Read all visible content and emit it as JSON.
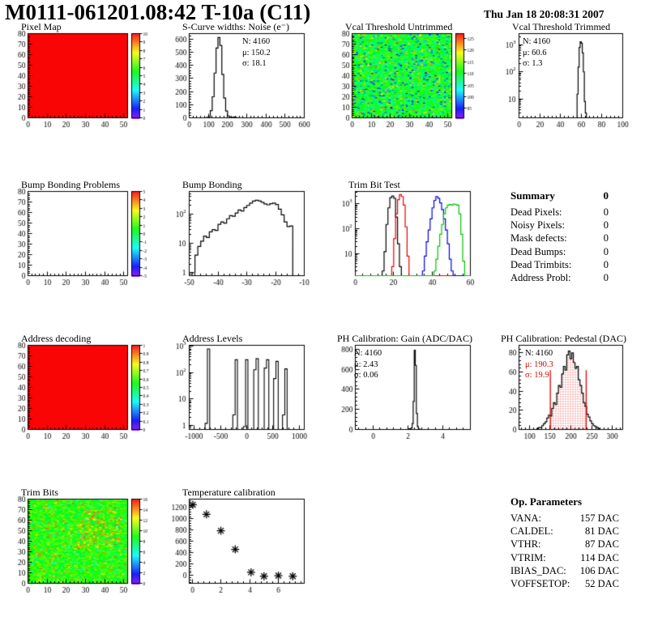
{
  "header": {
    "title": "M0111-061201.08:42 T-10a (C11)",
    "date": "Thu Jan 18 20:08:31 2007"
  },
  "summary": {
    "title": "Summary",
    "total": "0",
    "items": [
      {
        "label": "Dead Pixels:",
        "value": "0"
      },
      {
        "label": "Noisy Pixels:",
        "value": "0"
      },
      {
        "label": "Mask defects:",
        "value": "0"
      },
      {
        "label": "Dead Bumps:",
        "value": "0"
      },
      {
        "label": "Dead Trimbits:",
        "value": "0"
      },
      {
        "label": "Address Probl:",
        "value": "0"
      }
    ]
  },
  "op_parameters": {
    "title": "Op. Parameters",
    "items": [
      {
        "label": "VANA:",
        "value": "157 DAC"
      },
      {
        "label": "CALDEL:",
        "value": "81 DAC"
      },
      {
        "label": "VTHR:",
        "value": "87 DAC"
      },
      {
        "label": "VTRIM:",
        "value": "114 DAC"
      },
      {
        "label": "IBIAS_DAC:",
        "value": "106 DAC"
      },
      {
        "label": "VOFFSETOP:",
        "value": "52 DAC"
      }
    ]
  },
  "colors": {
    "accent_red": "#e00000",
    "series_black": "#000000",
    "series_red": "#e00000",
    "series_blue": "#0000dd",
    "series_green": "#00c400"
  },
  "chart_data": [
    {
      "id": "pixel-map",
      "title": "Pixel Map",
      "type": "heatmap",
      "x": {
        "min": 0,
        "max": 52,
        "ticks": [
          0,
          10,
          20,
          30,
          40,
          50
        ]
      },
      "y": {
        "min": 0,
        "max": 80,
        "ticks": [
          0,
          10,
          20,
          30,
          40,
          50,
          60,
          70,
          80
        ]
      },
      "colorbar": {
        "min": 0,
        "max": 10,
        "ticks": [
          0,
          1,
          2,
          3,
          4,
          5,
          6,
          7,
          8,
          9,
          10
        ]
      },
      "fill": {
        "mode": "solid",
        "value": 10
      }
    },
    {
      "id": "scurve-noise",
      "title": "S-Curve widths: Noise (e⁻)",
      "type": "hist",
      "x": {
        "min": 0,
        "max": 600,
        "ticks": [
          0,
          100,
          200,
          300,
          400,
          500,
          600
        ]
      },
      "y": {
        "min": 0,
        "max": 640,
        "ticks": [
          0,
          100,
          200,
          300,
          400,
          500,
          600
        ]
      },
      "series": [
        {
          "color": "#000000",
          "x0": 90,
          "binWidth": 10,
          "counts": [
            2,
            10,
            55,
            160,
            340,
            530,
            610,
            550,
            330,
            150,
            52,
            14,
            4,
            2,
            5,
            2
          ]
        }
      ],
      "stats": {
        "pos": "right",
        "lines": [
          "N: 4160",
          "μ: 150.2",
          "σ: 18.1"
        ]
      }
    },
    {
      "id": "vcal-untrimmed",
      "title": "Vcal Threshold Untrimmed",
      "type": "heatmap",
      "x": {
        "min": 0,
        "max": 52,
        "ticks": [
          0,
          10,
          20,
          30,
          40,
          50
        ]
      },
      "y": {
        "min": 0,
        "max": 80,
        "ticks": [
          0,
          10,
          20,
          30,
          40,
          50,
          60,
          70,
          80
        ]
      },
      "colorbar": {
        "min": 91,
        "max": 127,
        "ticks": [
          95,
          100,
          105,
          110,
          115,
          120,
          125
        ]
      },
      "fill": {
        "mode": "noise",
        "seed": 7,
        "base": 110,
        "spread": 9,
        "low_frac": 0.08,
        "low": [
          95,
          101
        ],
        "high_frac": 0.045,
        "high": [
          117,
          124
        ],
        "edge_boost": 10
      }
    },
    {
      "id": "vcal-trimmed",
      "title": "Vcal Threshold Trimmed",
      "type": "hist",
      "x": {
        "min": 0,
        "max": 100,
        "ticks": [
          0,
          20,
          40,
          60,
          80,
          100
        ]
      },
      "y": {
        "log": true,
        "min": 2,
        "max": 2600,
        "ticks": [
          10,
          100,
          1000
        ]
      },
      "series": [
        {
          "color": "#000000",
          "x0": 55,
          "binWidth": 1,
          "counts": [
            2,
            15,
            150,
            800,
            1300,
            1150,
            500,
            100,
            8,
            3
          ]
        }
      ],
      "stats": {
        "pos": "left",
        "lines": [
          "N: 4160",
          "μ: 60.6",
          "σ:  1.3"
        ]
      }
    },
    {
      "id": "bump-problems",
      "title": "Bump Bonding Problems",
      "type": "heatmap",
      "x": {
        "min": 0,
        "max": 52,
        "ticks": [
          0,
          10,
          20,
          30,
          40,
          50
        ]
      },
      "y": {
        "min": 0,
        "max": 80,
        "ticks": [
          0,
          10,
          20,
          30,
          40,
          50,
          60,
          70,
          80
        ]
      },
      "colorbar": {
        "min": -5,
        "max": 5,
        "ticks": [
          -5,
          -4,
          -3,
          -2,
          -1,
          0,
          1,
          2,
          3,
          4,
          5
        ]
      },
      "fill": {
        "mode": "empty"
      }
    },
    {
      "id": "bump-bonding",
      "title": "Bump Bonding",
      "type": "hist",
      "x": {
        "min": -50,
        "max": -10,
        "ticks": [
          -50,
          -40,
          -30,
          -20,
          -10
        ]
      },
      "y": {
        "log": true,
        "min": 0.8,
        "max": 600,
        "ticks": [
          1,
          10,
          100
        ]
      },
      "series": [
        {
          "color": "#000000",
          "x0": -49,
          "binWidth": 1,
          "counts": [
            1,
            4,
            8,
            12,
            18,
            16,
            25,
            30,
            28,
            45,
            55,
            50,
            70,
            90,
            85,
            110,
            140,
            130,
            170,
            200,
            240,
            280,
            300,
            285,
            255,
            225,
            210,
            230,
            240,
            215,
            150,
            95,
            55,
            38,
            40
          ]
        }
      ]
    },
    {
      "id": "trimbit-test",
      "title": "Trim Bit Test",
      "type": "hist",
      "x": {
        "min": 0,
        "max": 60,
        "ticks": [
          0,
          20,
          40,
          60
        ]
      },
      "y": {
        "log": true,
        "min": 1.3,
        "max": 3200,
        "ticks": [
          10,
          100,
          1000
        ]
      },
      "series": [
        {
          "color": "#000000",
          "x0": 14,
          "binWidth": 1,
          "span": [
            0,
            60
          ],
          "counts": [
            2,
            12,
            150,
            700,
            1800,
            2100,
            1700,
            300,
            25,
            3
          ]
        },
        {
          "color": "#e00000",
          "x0": 19,
          "binWidth": 1,
          "span": [
            0,
            60
          ],
          "counts": [
            3,
            40,
            400,
            1500,
            2400,
            2000,
            900,
            120,
            8
          ]
        },
        {
          "color": "#0000dd",
          "x0": 35,
          "binWidth": 1,
          "span": [
            0,
            60
          ],
          "counts": [
            2,
            8,
            30,
            90,
            250,
            700,
            1400,
            2000,
            1700,
            1100,
            600,
            250,
            90,
            25,
            6,
            2
          ]
        },
        {
          "color": "#00c400",
          "x0": 41,
          "binWidth": 1,
          "span": [
            0,
            60
          ],
          "counts": [
            2,
            6,
            20,
            60,
            150,
            400,
            700,
            900,
            950,
            900,
            1000,
            950,
            900,
            400,
            60,
            5
          ]
        }
      ]
    },
    {
      "id": "address-decoding",
      "title": "Address decoding",
      "type": "heatmap",
      "x": {
        "min": 0,
        "max": 52,
        "ticks": [
          0,
          10,
          20,
          30,
          40,
          50
        ]
      },
      "y": {
        "min": 0,
        "max": 80,
        "ticks": [
          0,
          10,
          20,
          30,
          40,
          50,
          60,
          70,
          80
        ]
      },
      "colorbar": {
        "min": 0,
        "max": 1,
        "ticks": [
          0,
          0.1,
          0.2,
          0.3,
          0.4,
          0.5,
          0.6,
          0.7,
          0.8,
          0.9,
          1
        ]
      },
      "fill": {
        "mode": "solid",
        "value": 1
      }
    },
    {
      "id": "address-levels",
      "title": "Address Levels",
      "type": "spikes",
      "x": {
        "min": -1100,
        "max": 1100,
        "ticks": [
          -1000,
          -500,
          0,
          500,
          1000
        ]
      },
      "y": {
        "log": true,
        "min": 0.7,
        "max": 1100,
        "ticks": [
          1,
          10,
          100,
          1000
        ]
      },
      "spikes": [
        [
          -730,
          800,
          1.2
        ],
        [
          -200,
          310,
          2.5
        ],
        [
          0,
          310,
          0.9
        ],
        [
          200,
          340,
          130
        ],
        [
          400,
          310,
          150
        ],
        [
          580,
          270,
          60
        ],
        [
          750,
          140,
          2.5
        ]
      ]
    },
    {
      "id": "ph-gain",
      "title": "PH Calibration: Gain (ADC/DAC)",
      "type": "hist",
      "x": {
        "min": -1,
        "max": 5.6,
        "ticks": [
          0,
          2,
          4
        ]
      },
      "y": {
        "min": 0,
        "max": 840,
        "ticks": [
          0,
          200,
          400,
          600,
          800
        ]
      },
      "series": [
        {
          "color": "#000000",
          "x0": 2.08,
          "binWidth": 0.06,
          "counts": [
            8,
            3,
            15,
            60,
            280,
            790,
            640,
            160,
            30,
            6,
            2
          ]
        }
      ],
      "stats": {
        "pos": "left",
        "lines": [
          "N: 4160",
          "μ: 2.43",
          "σ: 0.06"
        ]
      }
    },
    {
      "id": "ph-pedestal",
      "title": "PH Calibration: Pedestal (DAC)",
      "type": "hist",
      "x": {
        "min": 75,
        "max": 325,
        "ticks": [
          100,
          150,
          200,
          250,
          300
        ]
      },
      "y": {
        "min": 0,
        "max": 88,
        "ticks": [
          0,
          20,
          40,
          60,
          80
        ]
      },
      "series": [
        {
          "color": "#000000",
          "x0": 118,
          "binWidth": 4,
          "counts": [
            1,
            2,
            2,
            4,
            6,
            8,
            12,
            15,
            14,
            22,
            28,
            26,
            38,
            46,
            44,
            58,
            66,
            62,
            78,
            82,
            74,
            80,
            70,
            64,
            66,
            52,
            46,
            38,
            28,
            24,
            16,
            13,
            9,
            6,
            4,
            3,
            2,
            1
          ]
        }
      ],
      "fill_region": {
        "from": 150.5,
        "to": 237,
        "color": "#e00000"
      },
      "vlines": [
        {
          "x": 150.5,
          "y": 62
        },
        {
          "x": 237,
          "y": 62
        }
      ],
      "stats": {
        "pos": "left",
        "lines": [
          "N: 4160",
          "μ: 190.3",
          "σ: 19.9"
        ]
      }
    },
    {
      "id": "trim-bits",
      "title": "Trim Bits",
      "type": "heatmap",
      "x": {
        "min": 0,
        "max": 52,
        "ticks": [
          0,
          10,
          20,
          30,
          40,
          50
        ]
      },
      "y": {
        "min": 0,
        "max": 80,
        "ticks": [
          0,
          10,
          20,
          30,
          40,
          50,
          60,
          70,
          80
        ]
      },
      "colorbar": {
        "min": 0,
        "max": 16,
        "ticks": [
          0,
          2,
          4,
          6,
          8,
          10,
          12,
          14,
          16
        ]
      },
      "fill": {
        "mode": "noise",
        "seed": 3,
        "base": 9.3,
        "spread": 2.8,
        "low_frac": 0.05,
        "low": [
          5.5,
          7.5
        ],
        "high_frac": 0.06,
        "high": [
          12,
          15
        ],
        "cluster": {
          "x": [
            26,
            48
          ],
          "y": [
            35,
            70
          ],
          "frac": 0.18,
          "range": [
            12,
            15
          ]
        }
      }
    },
    {
      "id": "temp-calibration",
      "title": "Temperature calibration",
      "type": "scatter",
      "x": {
        "min": -0.2,
        "max": 7.8,
        "ticks": [
          0,
          2,
          4,
          6
        ]
      },
      "y": {
        "min": -140,
        "max": 1350,
        "ticks": [
          0,
          200,
          400,
          600,
          800,
          1000,
          1200
        ]
      },
      "points": [
        [
          0.05,
          1250
        ],
        [
          1,
          1080
        ],
        [
          2,
          790
        ],
        [
          3,
          460
        ],
        [
          4.1,
          55
        ],
        [
          5,
          -15
        ],
        [
          6,
          -5
        ],
        [
          7,
          -15
        ]
      ],
      "marker": "asterisk"
    }
  ]
}
